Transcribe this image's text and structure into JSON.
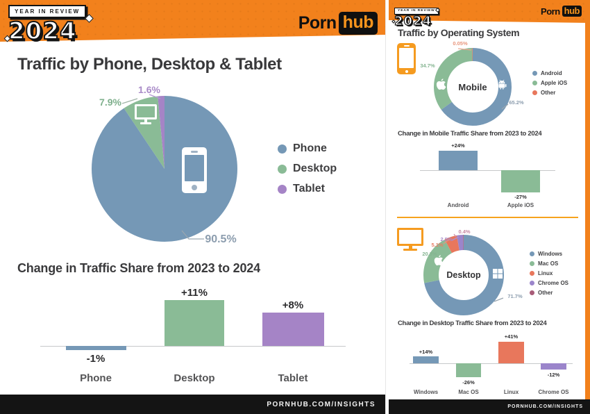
{
  "palette": {
    "orange": "#F2811C",
    "black": "#141414",
    "blue": "#7598B6",
    "green": "#8ABB96",
    "purple": "#A584C6",
    "coral": "#E8775C",
    "chrome_purple": "#9B85CB",
    "maroon": "#A85C78"
  },
  "brand": {
    "word1": "Porn",
    "word2": "hub"
  },
  "left": {
    "badge_kicker": "YEAR IN REVIEW",
    "badge_year": "2024",
    "title": "Traffic by Phone, Desktop & Tablet",
    "footer": "PORNHUB.COM/INSIGHTS"
  },
  "right": {
    "badge_kicker": "YEAR IN REVIEW",
    "badge_year": "2024",
    "title": "Traffic by Operating System",
    "footer": "PORNHUB.COM/INSIGHTS"
  },
  "chart_data": [
    {
      "id": "traffic-by-device-pie",
      "type": "pie",
      "title": "Traffic by Phone, Desktop & Tablet",
      "categories": [
        "Phone",
        "Desktop",
        "Tablet"
      ],
      "values": [
        90.5,
        7.9,
        1.6
      ],
      "labels": [
        "90.5%",
        "7.9%",
        "1.6%"
      ],
      "colors": [
        "#7598B6",
        "#8ABB96",
        "#A584C6"
      ],
      "legend_position": "right",
      "slice_icons": [
        "smartphone",
        "monitor",
        ""
      ]
    },
    {
      "id": "traffic-change-by-device-bar",
      "type": "bar",
      "title": "Change in Traffic Share from 2023 to 2024",
      "categories": [
        "Phone",
        "Desktop",
        "Tablet"
      ],
      "values": [
        -1,
        11,
        8
      ],
      "value_labels": [
        "-1%",
        "+11%",
        "+8%"
      ],
      "colors": [
        "#7598B6",
        "#8ABB96",
        "#A584C6"
      ],
      "baseline": 0
    },
    {
      "id": "mobile-os-donut",
      "type": "pie",
      "subtype": "donut",
      "center_label": "Mobile",
      "categories": [
        "Android",
        "Apple iOS",
        "Other"
      ],
      "values": [
        65.2,
        34.7,
        0.05
      ],
      "labels": [
        "65.2%",
        "34.7%",
        "0.05%"
      ],
      "colors": [
        "#7598B6",
        "#8ABB96",
        "#E8775C"
      ],
      "legend_position": "right",
      "slice_icons": [
        "android-robot",
        "apple-logo",
        ""
      ]
    },
    {
      "id": "mobile-os-change-bar",
      "type": "bar",
      "title": "Change in Mobile Traffic Share from 2023 to 2024",
      "categories": [
        "Android",
        "Apple iOS"
      ],
      "values": [
        24,
        -27
      ],
      "value_labels": [
        "+24%",
        "-27%"
      ],
      "colors": [
        "#7598B6",
        "#8ABB96"
      ],
      "baseline": 0
    },
    {
      "id": "desktop-os-donut",
      "type": "pie",
      "subtype": "donut",
      "center_label": "Desktop",
      "categories": [
        "Windows",
        "Mac OS",
        "Linux",
        "Chrome OS",
        "Other"
      ],
      "values": [
        71.7,
        20.3,
        5.1,
        2.5,
        0.4
      ],
      "labels": [
        "71.7%",
        "20.3%",
        "5.1%",
        "2.5%",
        "0.4%"
      ],
      "colors": [
        "#7598B6",
        "#8ABB96",
        "#E8775C",
        "#9B85CB",
        "#A85C78"
      ],
      "legend_position": "right",
      "slice_icons": [
        "windows-logo",
        "apple-logo",
        "",
        "",
        ""
      ]
    },
    {
      "id": "desktop-os-change-bar",
      "type": "bar",
      "title": "Change in Desktop Traffic Share from 2023 to 2024",
      "categories": [
        "Windows",
        "Mac OS",
        "Linux",
        "Chrome OS"
      ],
      "values": [
        14,
        -26,
        41,
        -12
      ],
      "value_labels": [
        "+14%",
        "-26%",
        "+41%",
        "-12%"
      ],
      "colors": [
        "#7598B6",
        "#8ABB96",
        "#E8775C",
        "#9B85CB"
      ],
      "baseline": 0
    }
  ]
}
